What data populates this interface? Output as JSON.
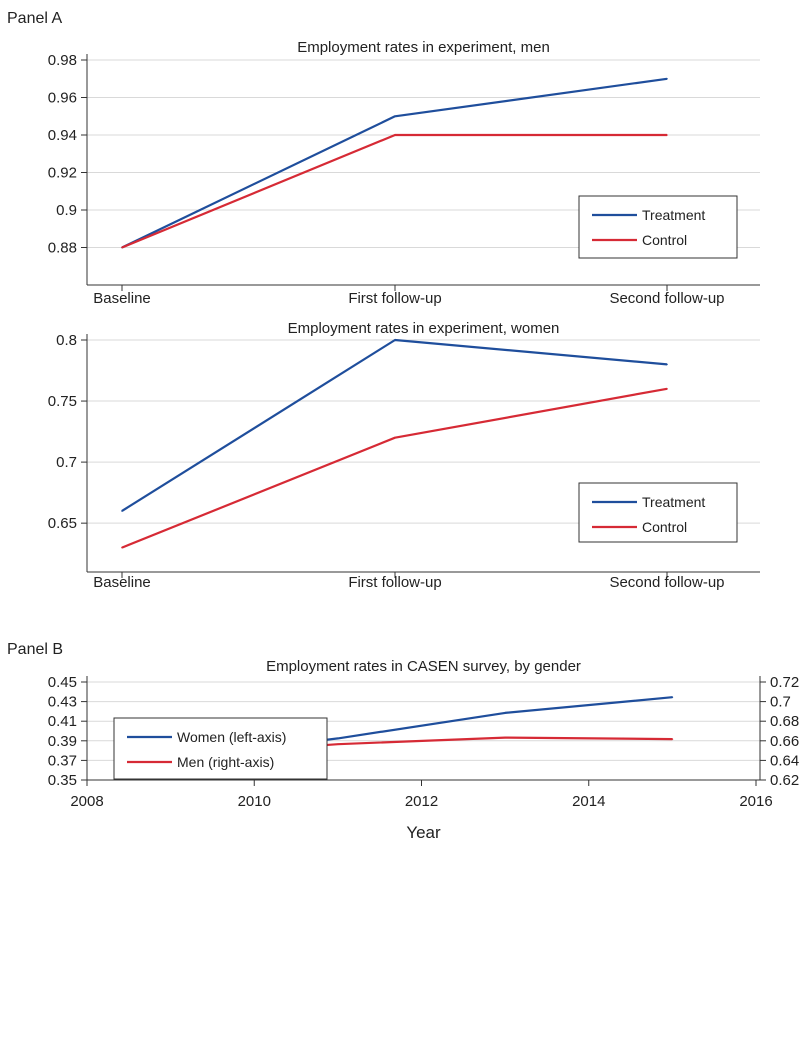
{
  "panel_labels": [
    "Panel A",
    "Panel B"
  ],
  "chart_data": [
    {
      "type": "line",
      "title": "Employment rates in experiment, men",
      "categories": [
        "Baseline",
        "First follow-up",
        "Second follow-up"
      ],
      "xlabel": "",
      "ylabel": "",
      "ylim": [
        0.86,
        0.98
      ],
      "yticks": [
        "0.88",
        "0.9",
        "0.92",
        "0.94",
        "0.96",
        "0.98"
      ],
      "grid": true,
      "legend_position": "bottom-right",
      "series": [
        {
          "name": "Treatment",
          "values": [
            0.88,
            0.95,
            0.97
          ],
          "color": "#1f4e9c"
        },
        {
          "name": "Control",
          "values": [
            0.88,
            0.94,
            0.94
          ],
          "color": "#d62a35"
        }
      ]
    },
    {
      "type": "line",
      "title": "Employment rates in experiment, women",
      "categories": [
        "Baseline",
        "First follow-up",
        "Second follow-up"
      ],
      "xlabel": "",
      "ylabel": "",
      "ylim": [
        0.61,
        0.8
      ],
      "yticks": [
        "0.65",
        "0.7",
        "0.75",
        "0.8"
      ],
      "grid": true,
      "legend_position": "bottom-right",
      "series": [
        {
          "name": "Treatment",
          "values": [
            0.66,
            0.8,
            0.78
          ],
          "color": "#1f4e9c"
        },
        {
          "name": "Control",
          "values": [
            0.63,
            0.72,
            0.76
          ],
          "color": "#d62a35"
        }
      ]
    },
    {
      "type": "line",
      "title": "Employment rates in CASEN survey, by gender",
      "xlabel": "Year",
      "ylabel": "",
      "x": [
        2009,
        2011,
        2013,
        2015
      ],
      "xlim": [
        2008,
        2016
      ],
      "xticks": [
        "2008",
        "2010",
        "2012",
        "2014",
        "2016"
      ],
      "ylim": [
        0.35,
        0.45
      ],
      "yticks": [
        "0.35",
        "0.37",
        "0.39",
        "0.41",
        "0.43",
        "0.45"
      ],
      "y2lim": [
        0.62,
        0.72
      ],
      "y2ticks": [
        "0.62",
        "0.64",
        "0.66",
        "0.68",
        "0.7",
        "0.72"
      ],
      "grid": true,
      "legend_position": "top-left",
      "series": [
        {
          "name": "Women (left-axis)",
          "axis": "left",
          "values": [
            0.3715,
            0.3925,
            0.4185,
            0.4345
          ],
          "color": "#1f4e9c"
        },
        {
          "name": "Men (right-axis)",
          "axis": "right",
          "values": [
            0.6445,
            0.6565,
            0.6633,
            0.6617
          ],
          "color": "#d62a35"
        }
      ]
    }
  ]
}
